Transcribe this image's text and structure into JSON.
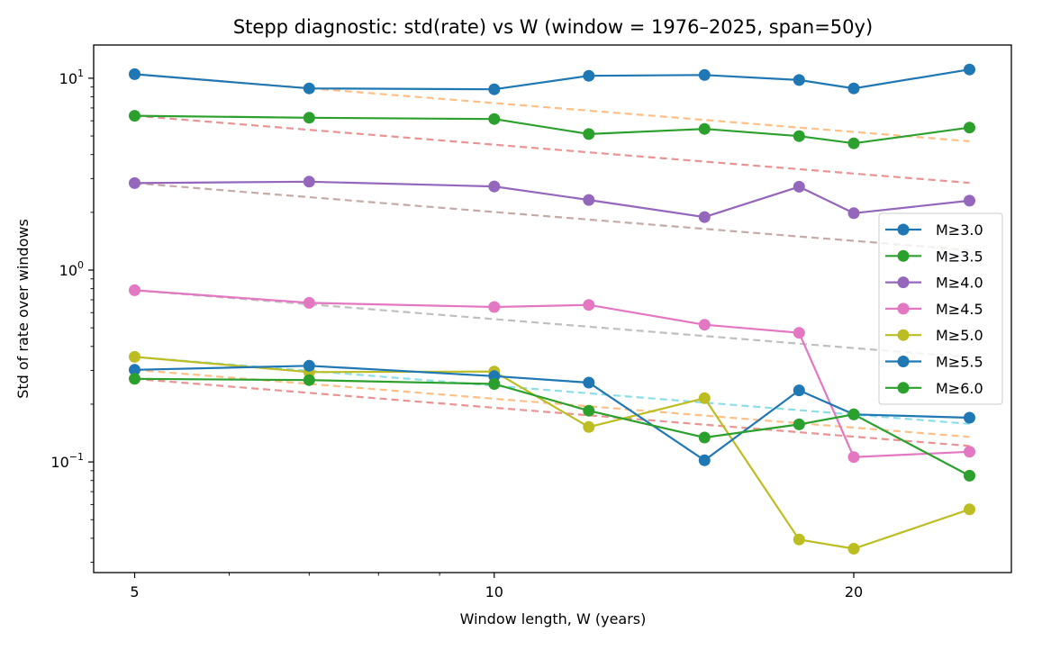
{
  "chart_data": {
    "type": "line",
    "title": "Stepp diagnostic: std(rate) vs W  (window = 1976–2025, span=50y)",
    "xlabel": "Window length, W (years)",
    "ylabel": "Std of rate over windows",
    "xscale": "log",
    "yscale": "log",
    "xlim": [
      4.62,
      27.1
    ],
    "ylim": [
      0.0265,
      14.9
    ],
    "x_ticks": [
      {
        "value": 5,
        "label": "5"
      },
      {
        "value": 10,
        "label": "10"
      },
      {
        "value": 20,
        "label": "20"
      }
    ],
    "x_minor_ticks": [
      6,
      7,
      8,
      9
    ],
    "y_ticks": [
      {
        "value": 10,
        "base": "10",
        "exp": "1"
      },
      {
        "value": 1,
        "base": "10",
        "exp": "0"
      },
      {
        "value": 0.1,
        "base": "10",
        "exp": "−1"
      }
    ],
    "grid": false,
    "legend_position": "center-right",
    "x": [
      5,
      7,
      10,
      12,
      15,
      18,
      20,
      25
    ],
    "series": [
      {
        "name": "M≥3.0",
        "color": "#1f77b4",
        "values": [
          10.5,
          8.85,
          8.76,
          10.3,
          10.4,
          9.79,
          8.85,
          11.1
        ]
      },
      {
        "name": "M≥3.5",
        "color": "#2ca02c",
        "values": [
          6.37,
          6.22,
          6.13,
          5.12,
          5.44,
          4.99,
          4.58,
          5.53
        ]
      },
      {
        "name": "M≥4.0",
        "color": "#9467bd",
        "values": [
          2.84,
          2.89,
          2.73,
          2.32,
          1.89,
          2.72,
          1.98,
          2.3
        ]
      },
      {
        "name": "M≥4.5",
        "color": "#e377c2",
        "values": [
          0.785,
          0.675,
          0.642,
          0.658,
          0.519,
          0.471,
          0.106,
          0.113
        ]
      },
      {
        "name": "M≥5.0",
        "color": "#bcbd22",
        "values": [
          0.353,
          0.294,
          0.296,
          0.152,
          0.215,
          0.0394,
          0.0353,
          0.0566
        ]
      },
      {
        "name": "M≥5.5",
        "color": "#1f77b4",
        "values": [
          0.302,
          0.317,
          0.28,
          0.259,
          0.102,
          0.236,
          0.177,
          0.17
        ]
      },
      {
        "name": "M≥6.0",
        "color": "#2ca02c",
        "values": [
          0.271,
          0.267,
          0.255,
          0.185,
          0.134,
          0.157,
          0.177,
          0.0848
        ]
      }
    ],
    "reference_lines": {
      "style": "dashed",
      "description": "std(W5) * (W/5)^-0.5 for each series",
      "exponent": -0.5,
      "anchor_x": 5,
      "colors": [
        "#ff7f0e",
        "#d62728",
        "#8c564b",
        "#7f7f7f",
        "#17becf",
        "#ff7f0e",
        "#d62728"
      ],
      "opacity": 0.5
    }
  }
}
